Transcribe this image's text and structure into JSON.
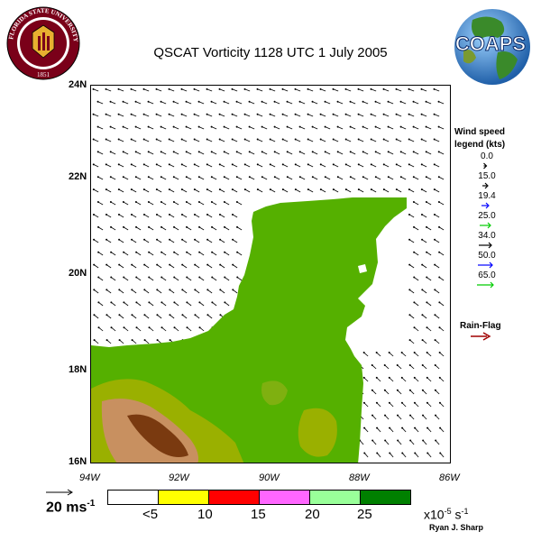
{
  "title": "QSCAT Vorticity 1128 UTC 1 July 2005",
  "logos": {
    "fsu": {
      "ring_text": "FLORIDA STATE UNIVERSITY",
      "year": "1851"
    },
    "coaps": {
      "text": "COAPS"
    }
  },
  "lat_labels": [
    "24N",
    "22N",
    "20N",
    "18N",
    "16N"
  ],
  "lon_labels": [
    "94W",
    "92W",
    "90W",
    "88W",
    "86W"
  ],
  "wind_legend": {
    "title_line1": "Wind speed",
    "title_line2": "legend (kts)",
    "entries": [
      {
        "value": "0.0",
        "color": "#000000"
      },
      {
        "value": "15.0",
        "color": "#000000"
      },
      {
        "value": "19.4",
        "color": "#0000ff"
      },
      {
        "value": "25.0",
        "color": "#00cc00"
      },
      {
        "value": "34.0",
        "color": "#000000"
      },
      {
        "value": "50.0",
        "color": "#0000ff"
      },
      {
        "value": "65.0",
        "color": "#00cc00"
      }
    ],
    "rain_flag": {
      "label": "Rain-Flag",
      "color": "#a00000"
    }
  },
  "colorbar": {
    "colors": [
      "#ffffff",
      "#ffff00",
      "#ff0000",
      "#ff66ff",
      "#99ff99",
      "#008000"
    ],
    "labels": [
      "<5",
      "10",
      "15",
      "20",
      "25"
    ]
  },
  "units": "x10",
  "units_exp": "-5",
  "units_s": " s",
  "units_exp2": "-1",
  "scale_label": "20 ms",
  "scale_exp": "-1",
  "credit": "Ryan J. Sharp",
  "colors": {
    "land_green": "#55b000",
    "terrain_dark": "#7a3a10",
    "terrain_tan": "#c89060"
  }
}
